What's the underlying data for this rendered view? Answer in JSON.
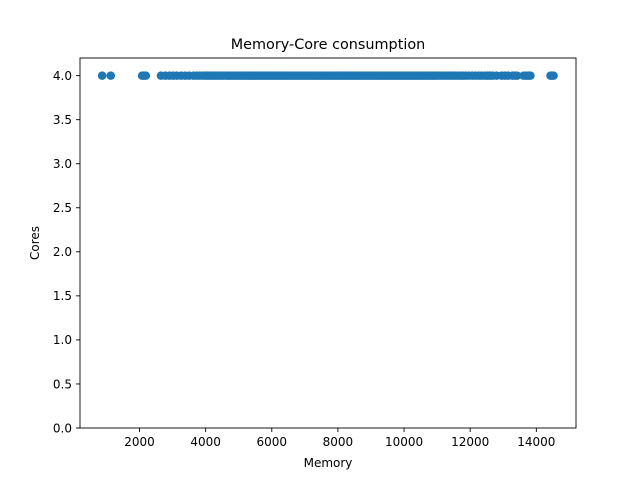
{
  "chart_data": {
    "type": "scatter",
    "title": "Memory-Core consumption",
    "xlabel": "Memory",
    "ylabel": "Cores",
    "xlim": [
      200,
      15200
    ],
    "ylim": [
      0.0,
      4.2
    ],
    "xticks": [
      2000,
      4000,
      6000,
      8000,
      10000,
      12000,
      14000
    ],
    "xtick_labels": [
      "2000",
      "4000",
      "6000",
      "8000",
      "10000",
      "12000",
      "14000"
    ],
    "yticks": [
      0.0,
      0.5,
      1.0,
      1.5,
      2.0,
      2.5,
      3.0,
      3.5,
      4.0
    ],
    "ytick_labels": [
      "0.0",
      "0.5",
      "1.0",
      "1.5",
      "2.0",
      "2.5",
      "3.0",
      "3.5",
      "4.0"
    ],
    "grid": false,
    "marker_color": "#1f77b4",
    "series": [
      {
        "x": [
          870,
          1130,
          2080,
          2130,
          2190,
          2650,
          2780,
          2900,
          3020,
          3130,
          3260,
          3380,
          3500,
          3630,
          3730,
          3820,
          3910,
          3990,
          4060,
          4130,
          4200,
          4270,
          4340,
          4420,
          4490,
          4560,
          4640,
          4700,
          4750,
          4820,
          4880,
          4950,
          5000,
          5060,
          5120,
          5180,
          5240,
          5300,
          5360,
          5420,
          5480,
          5540,
          5600,
          5660,
          5720,
          5780,
          5840,
          5900,
          5960,
          6020,
          6080,
          6140,
          6200,
          6260,
          6320,
          6380,
          6440,
          6500,
          6560,
          6620,
          6680,
          6740,
          6800,
          6860,
          6920,
          6980,
          7040,
          7100,
          7160,
          7220,
          7280,
          7340,
          7400,
          7460,
          7520,
          7580,
          7640,
          7700,
          7760,
          7820,
          7880,
          7940,
          8000,
          8060,
          8120,
          8180,
          8240,
          8300,
          8360,
          8420,
          8480,
          8540,
          8600,
          8660,
          8720,
          8780,
          8840,
          8900,
          8960,
          9020,
          9080,
          9140,
          9200,
          9260,
          9320,
          9380,
          9440,
          9500,
          9560,
          9620,
          9680,
          9740,
          9800,
          9860,
          9920,
          9980,
          10040,
          10100,
          10160,
          10220,
          10280,
          10340,
          10400,
          10460,
          10520,
          10580,
          10640,
          10700,
          10760,
          10820,
          10880,
          10940,
          11000,
          11080,
          11160,
          11250,
          11330,
          11400,
          11480,
          11560,
          11640,
          11720,
          11780,
          11860,
          11960,
          12060,
          12160,
          12260,
          12340,
          12440,
          12520,
          12600,
          12680,
          12800,
          12950,
          13050,
          13150,
          13280,
          13360,
          13420,
          13620,
          13700,
          13760,
          13820,
          14430,
          14470,
          14520
        ],
        "y_value": 4.0
      }
    ]
  }
}
